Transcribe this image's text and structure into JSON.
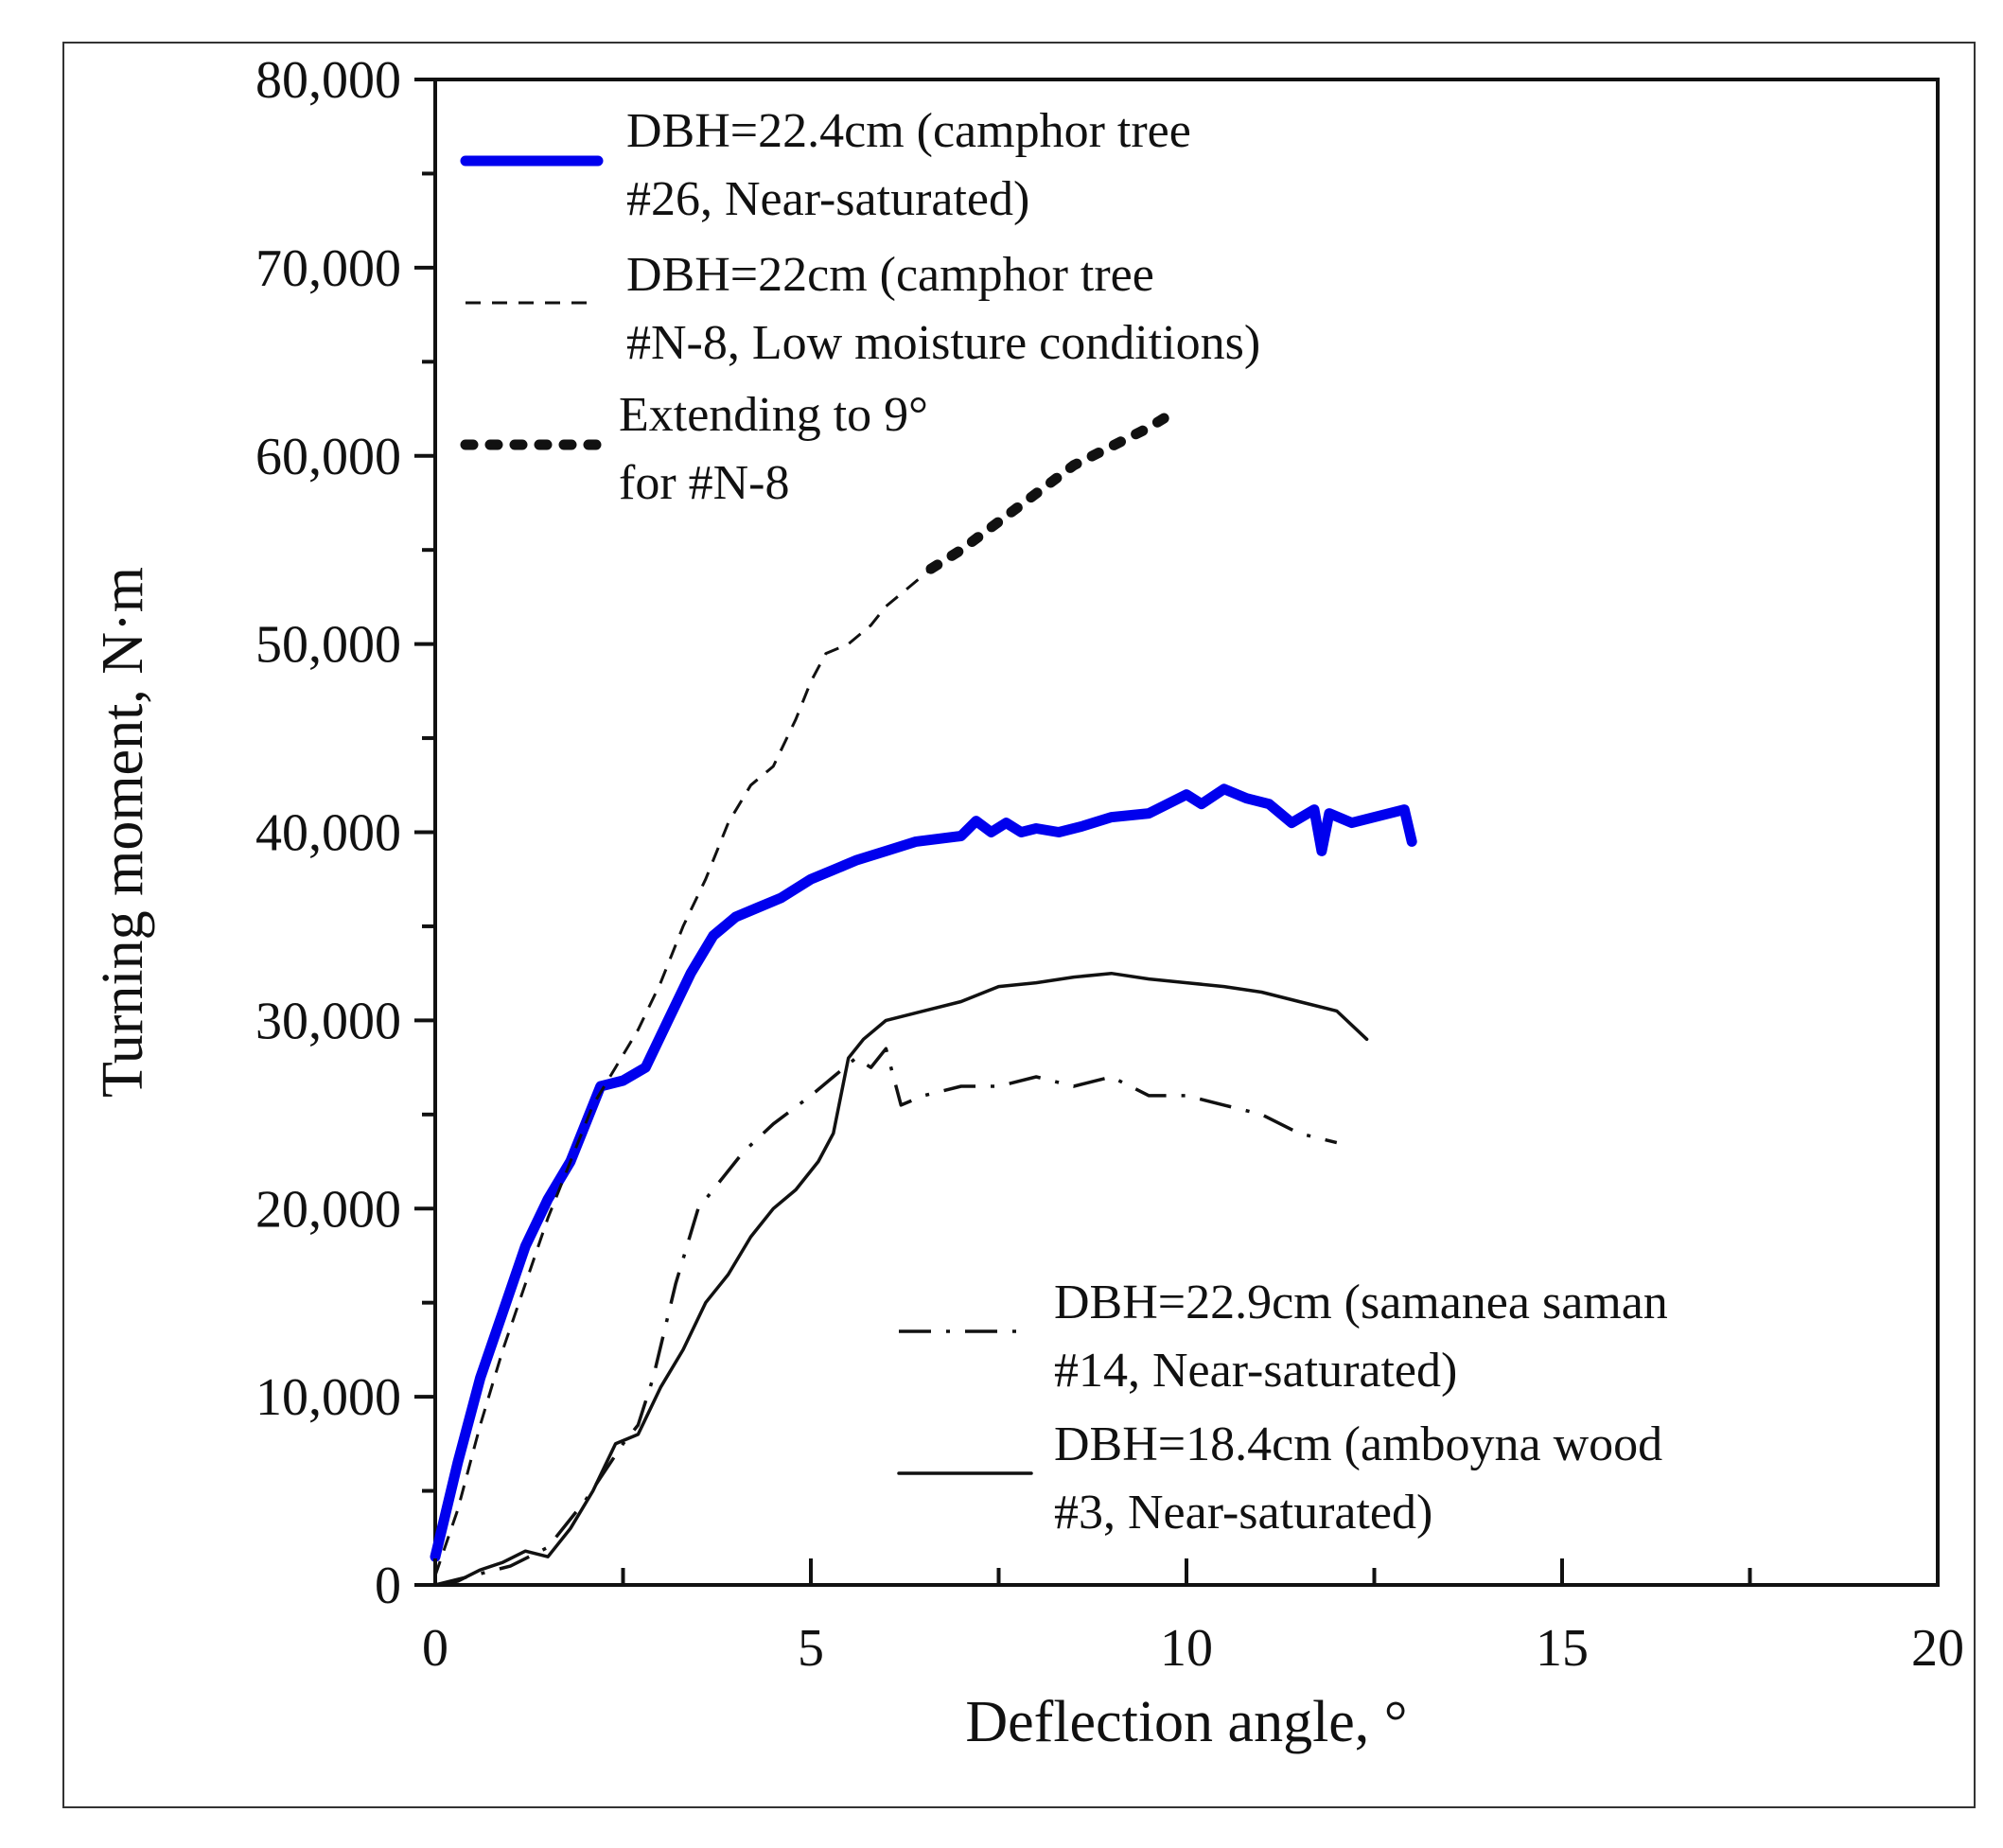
{
  "chart_data": {
    "type": "line",
    "title": "",
    "xlabel": "Deflection angle, °",
    "ylabel": "Turning moment, N·m",
    "xlim": [
      0,
      20
    ],
    "ylim": [
      0,
      80000
    ],
    "xticks": [
      0,
      5,
      10,
      15,
      20
    ],
    "xtick_labels": [
      "0",
      "5",
      "10",
      "15",
      "20"
    ],
    "yticks": [
      0,
      10000,
      20000,
      30000,
      40000,
      50000,
      60000,
      70000,
      80000
    ],
    "ytick_labels": [
      "0",
      "10,000",
      "20,000",
      "30,000",
      "40,000",
      "50,000",
      "60,000",
      "70,000",
      "80,000"
    ],
    "grid": false,
    "series": [
      {
        "name": "DBH=22.4cm (camphor tree #26, Near-saturated)",
        "legend_lines": [
          "DBH=22.4cm (camphor tree",
          "#26, Near-saturated)"
        ],
        "style": "solid-thick",
        "color": "#0000ee",
        "x": [
          0,
          0.3,
          0.6,
          0.9,
          1.2,
          1.5,
          1.8,
          2.0,
          2.2,
          2.5,
          2.8,
          3.1,
          3.4,
          3.7,
          4.0,
          4.3,
          4.6,
          5.0,
          5.3,
          5.6,
          6.0,
          6.4,
          7.0,
          7.2,
          7.4,
          7.6,
          7.8,
          8.0,
          8.3,
          8.6,
          9.0,
          9.5,
          10.0,
          10.2,
          10.5,
          10.8,
          11.1,
          11.4,
          11.7,
          11.8,
          11.9,
          12.2,
          12.5,
          12.9,
          13.0
        ],
        "y": [
          1500,
          6500,
          11000,
          14500,
          18000,
          20500,
          22500,
          24500,
          26500,
          26800,
          27500,
          30000,
          32500,
          34500,
          35500,
          36000,
          36500,
          37500,
          38000,
          38500,
          39000,
          39500,
          39800,
          40600,
          40000,
          40500,
          40000,
          40200,
          40000,
          40300,
          40800,
          41000,
          42000,
          41500,
          42300,
          41800,
          41500,
          40500,
          41200,
          39000,
          41000,
          40500,
          40800,
          41200,
          39500
        ]
      },
      {
        "name": "DBH=22cm (camphor tree #N-8, Low moisture conditions)",
        "legend_lines": [
          "DBH=22cm (camphor tree",
          "#N-8, Low moisture conditions)"
        ],
        "style": "dashed-thin",
        "color": "#111111",
        "x": [
          0,
          0.3,
          0.6,
          0.9,
          1.2,
          1.5,
          1.8,
          2.1,
          2.4,
          2.7,
          3.0,
          3.3,
          3.6,
          3.9,
          4.2,
          4.5,
          4.8,
          5.0,
          5.2,
          5.5,
          5.8,
          6.0,
          6.3,
          6.6
        ],
        "y": [
          500,
          4000,
          8500,
          12500,
          16000,
          19500,
          22500,
          25500,
          27500,
          29500,
          32000,
          35000,
          37500,
          40500,
          42500,
          43500,
          46000,
          48000,
          49500,
          50000,
          51000,
          52000,
          53000,
          54000
        ]
      },
      {
        "name": "Extending to 9o for #N-8",
        "legend_lines": [
          "Extending to 9°",
          "for #N-8"
        ],
        "style": "dotted-thick",
        "color": "#111111",
        "x": [
          6.6,
          7.0,
          7.5,
          8.0,
          8.5,
          9.0,
          9.5,
          9.7
        ],
        "y": [
          54000,
          55000,
          56500,
          58000,
          59500,
          60500,
          61500,
          62000
        ]
      },
      {
        "name": "DBH=22.9cm (samanea saman #14, Near-saturated)",
        "legend_lines": [
          "DBH=22.9cm (samanea saman",
          "#14, Near-saturated)"
        ],
        "style": "dashdot",
        "color": "#111111",
        "x": [
          0,
          0.5,
          1.0,
          1.5,
          2.0,
          2.5,
          2.7,
          2.9,
          3.2,
          3.5,
          3.8,
          4.1,
          4.5,
          5.0,
          5.3,
          5.6,
          5.8,
          6.0,
          6.2,
          6.5,
          7.0,
          7.5,
          8.0,
          8.5,
          9.0,
          9.5,
          10.0,
          10.5,
          11.0,
          11.5,
          12.0
        ],
        "y": [
          0,
          500,
          1000,
          2000,
          4500,
          7500,
          8500,
          11000,
          16000,
          20000,
          21500,
          23000,
          24500,
          26000,
          27000,
          28000,
          27500,
          28500,
          25500,
          26000,
          26500,
          26500,
          27000,
          26500,
          27000,
          26000,
          26000,
          25500,
          25000,
          24000,
          23500
        ]
      },
      {
        "name": "DBH=18.4cm (amboyna wood #3, Near-saturated)",
        "legend_lines": [
          "DBH=18.4cm (amboyna wood",
          "#3, Near-saturated)"
        ],
        "style": "solid-thin",
        "color": "#111111",
        "x": [
          0,
          0.3,
          0.6,
          0.9,
          1.2,
          1.5,
          1.8,
          2.1,
          2.4,
          2.7,
          3.0,
          3.3,
          3.6,
          3.9,
          4.2,
          4.5,
          4.8,
          5.1,
          5.3,
          5.5,
          5.7,
          6.0,
          6.5,
          7.0,
          7.5,
          8.0,
          8.5,
          9.0,
          9.5,
          10.0,
          10.5,
          11.0,
          11.5,
          12.0,
          12.4
        ],
        "y": [
          0,
          200,
          800,
          1200,
          1800,
          1500,
          3000,
          5000,
          7500,
          8000,
          10500,
          12500,
          15000,
          16500,
          18500,
          20000,
          21000,
          22500,
          24000,
          28000,
          29000,
          30000,
          30500,
          31000,
          31800,
          32000,
          32300,
          32500,
          32200,
          32000,
          31800,
          31500,
          31000,
          30500,
          29000
        ]
      }
    ],
    "legend_placement": [
      "top-left",
      "bottom-right"
    ]
  }
}
